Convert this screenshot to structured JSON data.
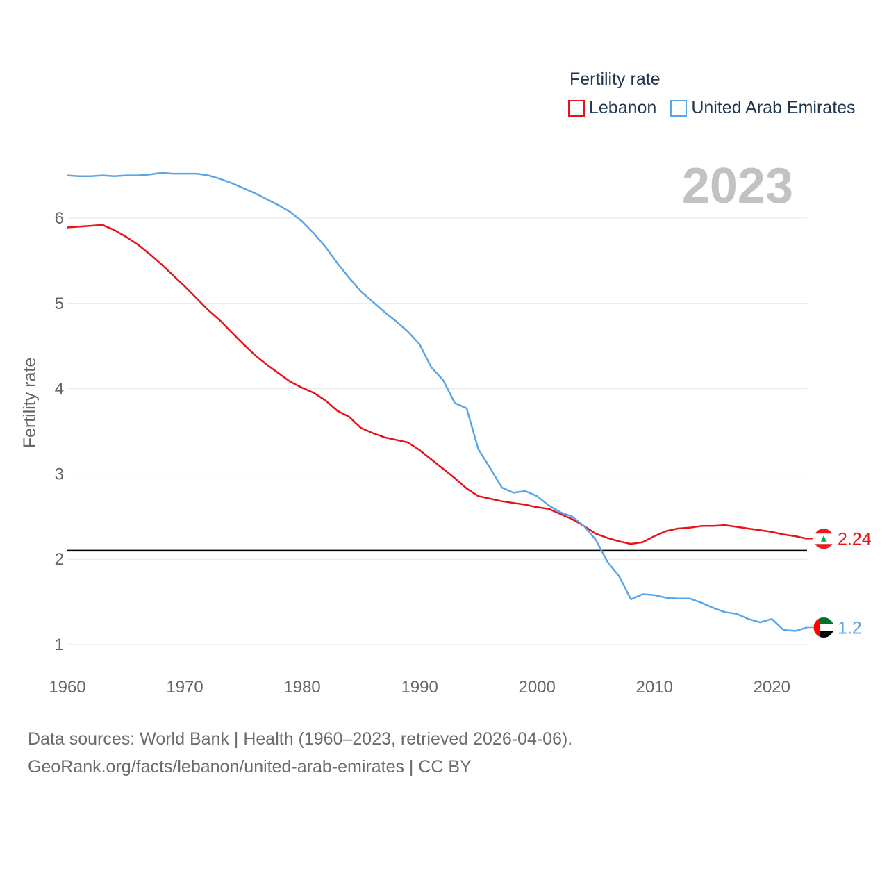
{
  "colors": {
    "lebanon": "#e8121a",
    "uae": "#5aa5e6",
    "grid": "#e6e6e6",
    "reference": "#000000"
  },
  "legend": {
    "title": "Fertility rate",
    "items": [
      {
        "label": "Lebanon",
        "color": "#e8121a"
      },
      {
        "label": "United Arab Emirates",
        "color": "#5aa5e6"
      }
    ]
  },
  "year_stamp": "2023",
  "source": {
    "line1": "Data sources: World Bank | Health (1960–2023, retrieved 2026-04-06).",
    "line2": "GeoRank.org/facts/lebanon/united-arab-emirates | CC BY"
  },
  "chart_data": {
    "type": "line",
    "title": "Fertility rate",
    "xlabel": "",
    "ylabel": "Fertility rate",
    "xlim": [
      1960,
      2023
    ],
    "ylim": [
      0.8,
      6.8
    ],
    "xticks": [
      1960,
      1970,
      1980,
      1990,
      2000,
      2010,
      2020
    ],
    "yticks": [
      1,
      2,
      3,
      4,
      5,
      6
    ],
    "grid": true,
    "reference_line": 2.1,
    "x": [
      1960,
      1961,
      1962,
      1963,
      1964,
      1965,
      1966,
      1967,
      1968,
      1969,
      1970,
      1971,
      1972,
      1973,
      1974,
      1975,
      1976,
      1977,
      1978,
      1979,
      1980,
      1981,
      1982,
      1983,
      1984,
      1985,
      1986,
      1987,
      1988,
      1989,
      1990,
      1991,
      1992,
      1993,
      1994,
      1995,
      1996,
      1997,
      1998,
      1999,
      2000,
      2001,
      2002,
      2003,
      2004,
      2005,
      2006,
      2007,
      2008,
      2009,
      2010,
      2011,
      2012,
      2013,
      2014,
      2015,
      2016,
      2017,
      2018,
      2019,
      2020,
      2021,
      2022,
      2023
    ],
    "series": [
      {
        "name": "Lebanon",
        "color": "#e8121a",
        "end_label": "2.24",
        "values": [
          5.89,
          5.9,
          5.91,
          5.92,
          5.86,
          5.78,
          5.69,
          5.58,
          5.46,
          5.33,
          5.2,
          5.06,
          4.92,
          4.8,
          4.66,
          4.52,
          4.39,
          4.28,
          4.18,
          4.08,
          4.01,
          3.95,
          3.86,
          3.74,
          3.67,
          3.54,
          3.48,
          3.43,
          3.4,
          3.37,
          3.28,
          3.17,
          3.06,
          2.95,
          2.83,
          2.74,
          2.71,
          2.68,
          2.66,
          2.64,
          2.61,
          2.59,
          2.53,
          2.47,
          2.39,
          2.3,
          2.25,
          2.21,
          2.18,
          2.2,
          2.27,
          2.33,
          2.36,
          2.37,
          2.39,
          2.39,
          2.4,
          2.38,
          2.36,
          2.34,
          2.32,
          2.29,
          2.27,
          2.24
        ]
      },
      {
        "name": "United Arab Emirates",
        "color": "#5aa5e6",
        "end_label": "1.2",
        "values": [
          6.5,
          6.49,
          6.49,
          6.5,
          6.49,
          6.5,
          6.5,
          6.51,
          6.53,
          6.52,
          6.52,
          6.52,
          6.5,
          6.46,
          6.41,
          6.35,
          6.29,
          6.22,
          6.15,
          6.07,
          5.96,
          5.82,
          5.66,
          5.47,
          5.3,
          5.14,
          5.02,
          4.9,
          4.79,
          4.67,
          4.52,
          4.25,
          4.1,
          3.83,
          3.77,
          3.29,
          3.07,
          2.84,
          2.78,
          2.8,
          2.74,
          2.63,
          2.55,
          2.5,
          2.39,
          2.23,
          1.97,
          1.8,
          1.53,
          1.59,
          1.58,
          1.55,
          1.54,
          1.54,
          1.49,
          1.43,
          1.38,
          1.36,
          1.3,
          1.26,
          1.3,
          1.17,
          1.16,
          1.2
        ]
      }
    ]
  }
}
